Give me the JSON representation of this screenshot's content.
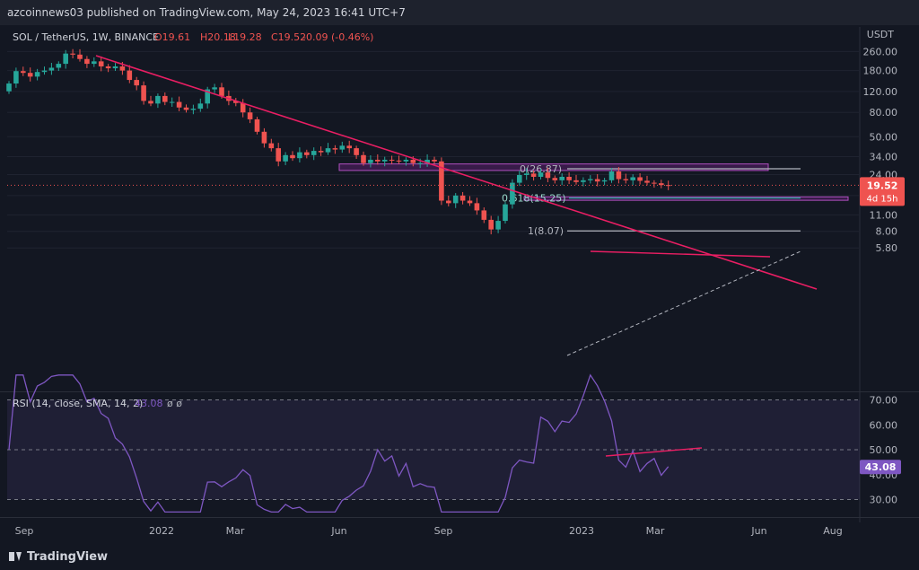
{
  "header": {
    "publish_text": "azcoinnews03 published on TradingView.com, May 24, 2023 16:41 UTC+7"
  },
  "footer": {
    "brand": "TradingView"
  },
  "chart_data": {
    "type": "candlestick",
    "title": "SOL / TetherUS, 1W, BINANCE",
    "ohlc_label": {
      "o": "O19.61",
      "h": "H20.18",
      "l": "L19.28",
      "c": "C19.52",
      "change": "-0.09 (-0.46%)"
    },
    "currency": "USDT",
    "price_scale": "log",
    "y_ticks": [
      "260.00",
      "180.00",
      "120.00",
      "80.00",
      "50.00",
      "34.00",
      "24.00",
      "16.00",
      "11.00",
      "8.00",
      "5.80"
    ],
    "x_ticks": [
      "Sep",
      "2022",
      "Mar",
      "Jun",
      "Sep",
      "2023",
      "Mar",
      "Jun",
      "Aug"
    ],
    "last_price": {
      "value": "19.52",
      "countdown": "4d 15h"
    },
    "closes": [
      140,
      178,
      172,
      160,
      175,
      180,
      190,
      205,
      250,
      245,
      225,
      205,
      215,
      195,
      188,
      195,
      180,
      150,
      135,
      100,
      95,
      110,
      98,
      98,
      88,
      84,
      86,
      95,
      125,
      130,
      110,
      100,
      96,
      80,
      70,
      55,
      44,
      40,
      31,
      35,
      33,
      37,
      35,
      38,
      37,
      40,
      39,
      42,
      40,
      35,
      30,
      32,
      31,
      32,
      31.5,
      31,
      32,
      30,
      30,
      32,
      31,
      14.5,
      13.8,
      16,
      14.5,
      13.8,
      12,
      10,
      8.3,
      9.8,
      13.5,
      20.5,
      23.8,
      24.5,
      23,
      25,
      22.5,
      21.5,
      23,
      21.5,
      20.8,
      21.5,
      22,
      21,
      21.5,
      25.5,
      22,
      21.5,
      22.8,
      21.3,
      20.5,
      20.3,
      19.6,
      19.52
    ],
    "fib_levels": [
      {
        "label": "0(26.87)",
        "value": 26.87
      },
      {
        "label": "0.618(15.25)",
        "value": 15.25
      },
      {
        "label": "1(8.07)",
        "value": 8.07
      }
    ],
    "rsi": {
      "label": "RSI (14, close, SMA, 14, 2)",
      "value": "43.08",
      "extra": "ø  ø",
      "ticks": [
        "70.00",
        "60.00",
        "50.00",
        "40.00",
        "30.00"
      ],
      "range": [
        30,
        70
      ],
      "band": [
        30,
        70
      ]
    }
  }
}
